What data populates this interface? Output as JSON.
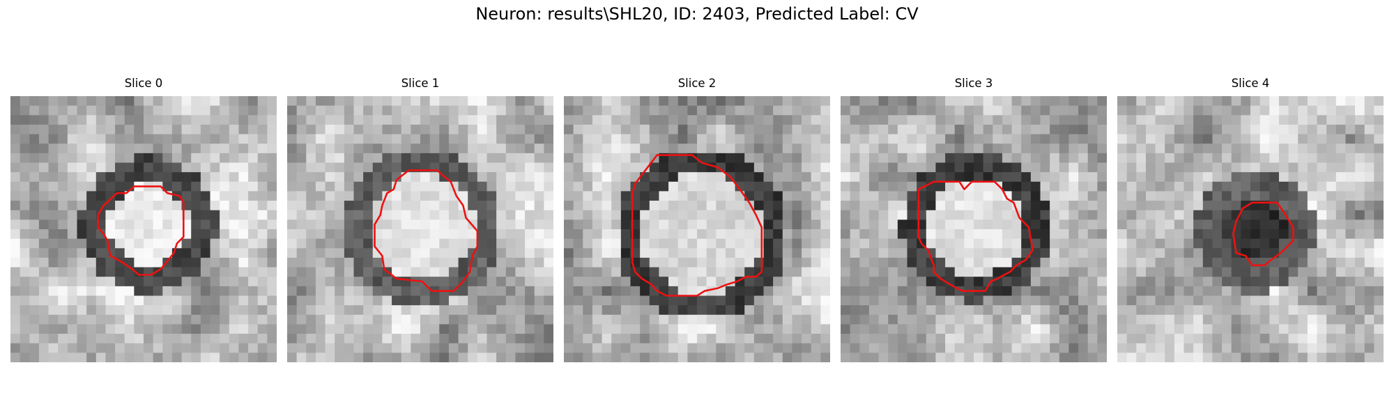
{
  "figure": {
    "title": "Neuron: results\\SHL20, ID: 2403, Predicted Label: CV"
  },
  "contour_color": "#ee1111",
  "panels": [
    {
      "title": "Slice 0",
      "image": "grayscale-microscopy-patch",
      "contour": "red-segmentation-outline"
    },
    {
      "title": "Slice 1",
      "image": "grayscale-microscopy-patch",
      "contour": "red-segmentation-outline"
    },
    {
      "title": "Slice 2",
      "image": "grayscale-microscopy-patch",
      "contour": "red-segmentation-outline"
    },
    {
      "title": "Slice 3",
      "image": "grayscale-microscopy-patch",
      "contour": "red-segmentation-outline"
    },
    {
      "title": "Slice 4",
      "image": "grayscale-microscopy-patch",
      "contour": "red-segmentation-outline"
    }
  ]
}
